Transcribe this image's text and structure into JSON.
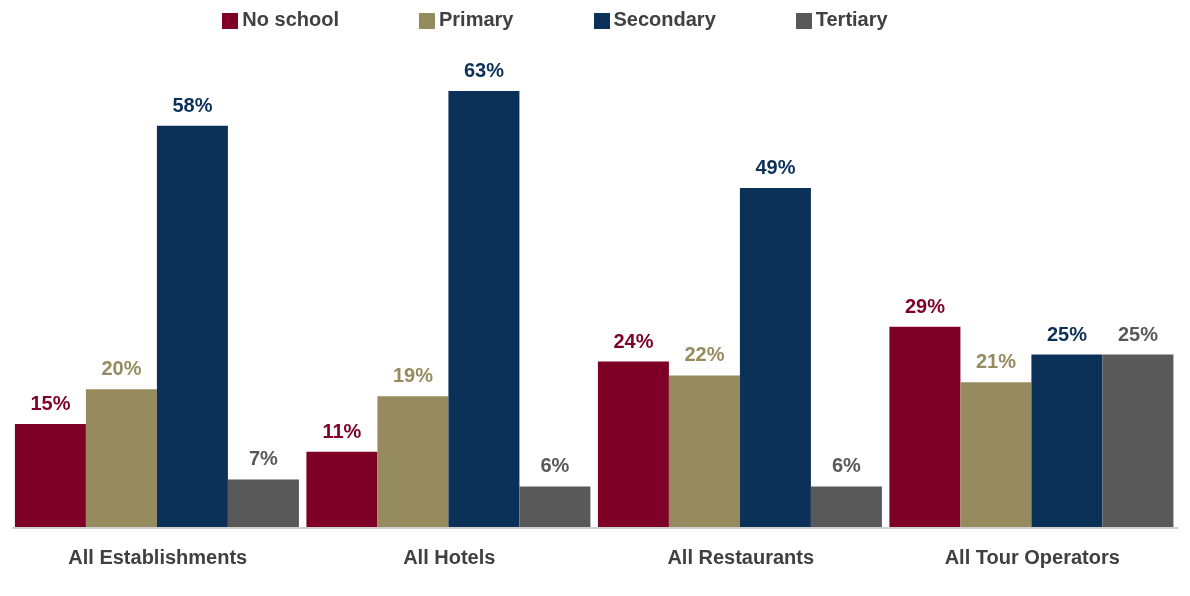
{
  "chart_data": {
    "type": "bar",
    "categories": [
      "All Establishments",
      "All Hotels",
      "All Restaurants",
      "All Tour Operators"
    ],
    "series": [
      {
        "name": "No school",
        "color": "#7f0026",
        "values": [
          15,
          11,
          24,
          29
        ],
        "value_labels": [
          "15%",
          "11%",
          "24%",
          "29%"
        ]
      },
      {
        "name": "Primary",
        "color": "#958b5e",
        "values": [
          20,
          19,
          22,
          21
        ],
        "value_labels": [
          "20%",
          "19%",
          "22%",
          "21%"
        ]
      },
      {
        "name": "Secondary",
        "color": "#0b3159",
        "values": [
          58,
          63,
          49,
          25
        ],
        "value_labels": [
          "58%",
          "63%",
          "49%",
          "25%"
        ]
      },
      {
        "name": "Tertiary",
        "color": "#595959",
        "values": [
          7,
          6,
          6,
          25
        ],
        "value_labels": [
          "7%",
          "6%",
          "6%",
          "25%"
        ]
      }
    ],
    "legend": "top",
    "tick_labels": "x",
    "grid": false
  }
}
